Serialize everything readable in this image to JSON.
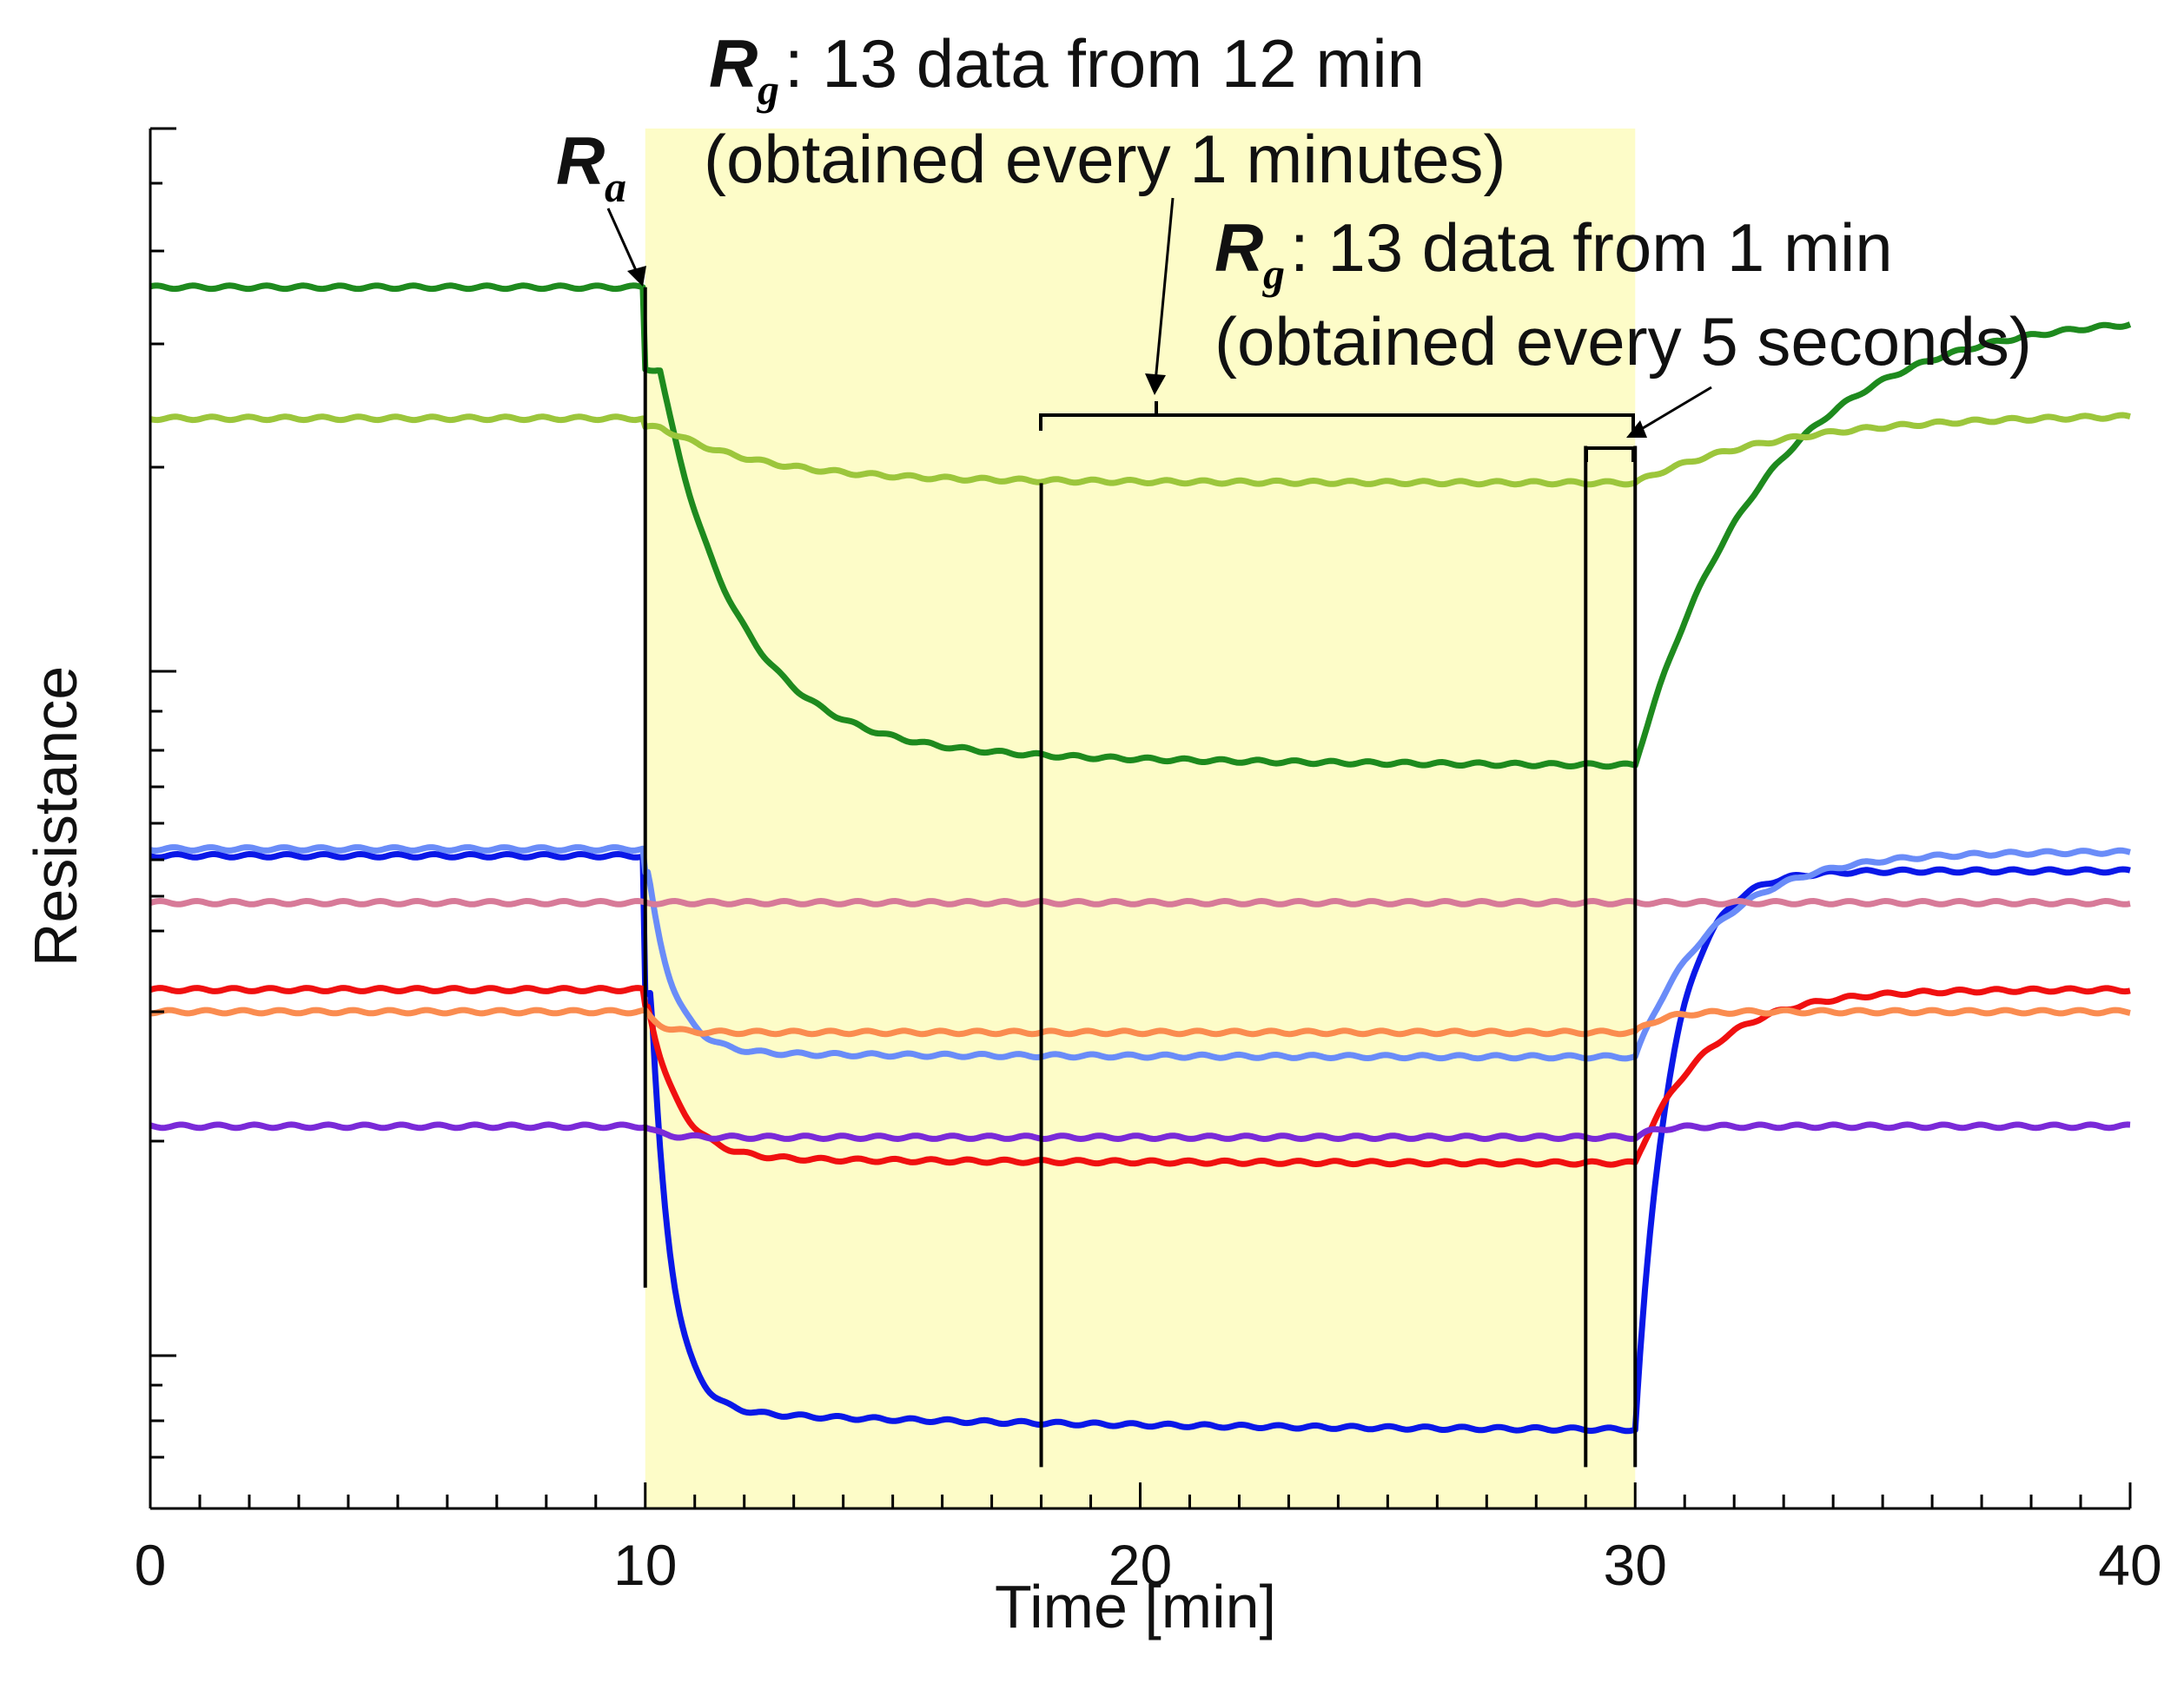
{
  "chart_data": {
    "type": "line",
    "title": "",
    "xlabel": "Time [min]",
    "ylabel": "Resistance",
    "xlim": [
      0,
      40
    ],
    "ylim": [
      0,
      100
    ],
    "x_ticks": [
      0,
      10,
      20,
      30,
      40
    ],
    "grid": false,
    "gas_exposure_window": {
      "start": 10,
      "end": 30,
      "color": "#fdfcc8"
    },
    "series": [
      {
        "name": "dark-green",
        "color": "#1e8a1e",
        "base": 88.5,
        "low": 53.7,
        "jump": 0.18,
        "tau_fall": 1.5,
        "drift": 2.0,
        "final": 86.5,
        "tau_rec": 2.6
      },
      {
        "name": "light-green",
        "color": "#9cc63c",
        "base": 79.0,
        "low": 74.3,
        "jump": 0.15,
        "tau_fall": 2.0,
        "drift": 0.3,
        "final": 79.3,
        "tau_rec": 3.0
      },
      {
        "name": "blue",
        "color": "#0a18e8",
        "base": 47.3,
        "low": 5.6,
        "jump": 0.25,
        "tau_fall": 0.4,
        "drift": 1.6,
        "final": 46.2,
        "tau_rec": 0.7
      },
      {
        "name": "light-blue",
        "color": "#6a8cf8",
        "base": 47.8,
        "low": 32.7,
        "jump": 0.12,
        "tau_fall": 0.5,
        "drift": 0.3,
        "final": 47.6,
        "tau_rec": 1.6
      },
      {
        "name": "pink",
        "color": "#d77a98",
        "base": 43.9,
        "low": 44.2,
        "jump": 0.0,
        "tau_fall": 0.5,
        "drift": 0.0,
        "final": 43.9,
        "tau_rec": 0.5
      },
      {
        "name": "red",
        "color": "#f01010",
        "base": 37.6,
        "low": 25.0,
        "jump": 0.1,
        "tau_fall": 0.6,
        "drift": 0.4,
        "final": 37.6,
        "tau_rec": 1.4
      },
      {
        "name": "orange",
        "color": "#fa8c50",
        "base": 36.0,
        "low": 34.5,
        "jump": 0.0,
        "tau_fall": 0.3,
        "drift": 0.0,
        "final": 36.0,
        "tau_rec": 0.5
      },
      {
        "name": "purple",
        "color": "#7a2ad8",
        "base": 27.7,
        "low": 26.9,
        "jump": 0.0,
        "tau_fall": 0.3,
        "drift": 0.0,
        "final": 27.7,
        "tau_rec": 0.4
      }
    ],
    "markers": {
      "ra_line_x": 10,
      "rg_12min_line_x": 18,
      "rg_1min_line_x": 29,
      "end_line_x": 30
    },
    "annotations": {
      "ra": {
        "symbol": "R",
        "sub": "a"
      },
      "rg_12": {
        "symbol": "R",
        "sub": "g",
        "line1": ": 13 data from 12 min",
        "line2": "(obtained every 1 minutes)"
      },
      "rg_1": {
        "symbol": "R",
        "sub": "g",
        "line1": ": 13 data from 1 min",
        "line2": "(obtained every 5 seconds)"
      }
    }
  }
}
